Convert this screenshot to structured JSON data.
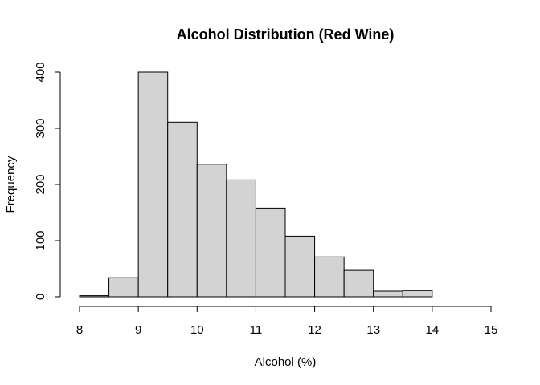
{
  "chart_data": {
    "type": "bar",
    "subtype": "histogram",
    "title": "Alcohol Distribution (Red Wine)",
    "xlabel": "Alcohol (%)",
    "ylabel": "Frequency",
    "bins": [
      {
        "start": 8.0,
        "end": 8.5,
        "value": 2
      },
      {
        "start": 8.5,
        "end": 9.0,
        "value": 34
      },
      {
        "start": 9.0,
        "end": 9.5,
        "value": 400
      },
      {
        "start": 9.5,
        "end": 10.0,
        "value": 311
      },
      {
        "start": 10.0,
        "end": 10.5,
        "value": 236
      },
      {
        "start": 10.5,
        "end": 11.0,
        "value": 208
      },
      {
        "start": 11.0,
        "end": 11.5,
        "value": 158
      },
      {
        "start": 11.5,
        "end": 12.0,
        "value": 108
      },
      {
        "start": 12.0,
        "end": 12.5,
        "value": 71
      },
      {
        "start": 12.5,
        "end": 13.0,
        "value": 47
      },
      {
        "start": 13.0,
        "end": 13.5,
        "value": 10
      },
      {
        "start": 13.5,
        "end": 14.0,
        "value": 11
      },
      {
        "start": 14.0,
        "end": 14.5,
        "value": 0
      },
      {
        "start": 14.5,
        "end": 15.0,
        "value": 0
      }
    ],
    "xlim": [
      8,
      15
    ],
    "ylim": [
      0,
      400
    ],
    "x_ticks": [
      "8",
      "9",
      "10",
      "11",
      "12",
      "13",
      "14",
      "15"
    ],
    "y_ticks": [
      "0",
      "100",
      "200",
      "300",
      "400"
    ],
    "bar_color": "#d3d3d3",
    "edge_color": "#000000",
    "grid": false,
    "legend": "none"
  }
}
